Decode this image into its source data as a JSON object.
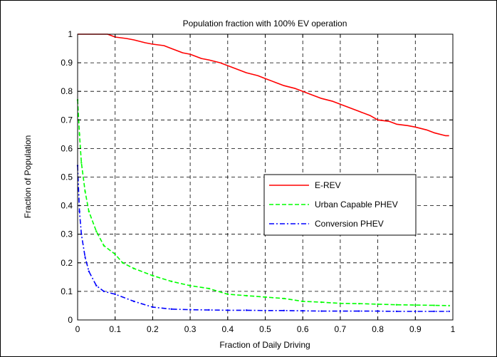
{
  "chart_data": {
    "type": "line",
    "title": "Population fraction with 100% EV operation",
    "xlabel": "Fraction of Daily Driving",
    "ylabel": "Fraction of Population",
    "xlim": [
      0,
      1
    ],
    "ylim": [
      0,
      1
    ],
    "xticks": [
      "0",
      "0.1",
      "0.2",
      "0.3",
      "0.4",
      "0.5",
      "0.6",
      "0.7",
      "0.8",
      "0.9",
      "1"
    ],
    "yticks": [
      "0",
      "0.1",
      "0.2",
      "0.3",
      "0.4",
      "0.5",
      "0.6",
      "0.7",
      "0.8",
      "0.9",
      "1"
    ],
    "grid": true,
    "legend_position": "center-right",
    "series": [
      {
        "name": "E-REV",
        "color": "#ff0000",
        "style": "solid",
        "x": [
          0,
          0.02,
          0.05,
          0.08,
          0.1,
          0.13,
          0.15,
          0.18,
          0.2,
          0.23,
          0.25,
          0.28,
          0.3,
          0.33,
          0.35,
          0.38,
          0.4,
          0.43,
          0.45,
          0.48,
          0.5,
          0.53,
          0.55,
          0.58,
          0.6,
          0.63,
          0.65,
          0.68,
          0.7,
          0.73,
          0.75,
          0.78,
          0.8,
          0.83,
          0.85,
          0.88,
          0.9,
          0.93,
          0.95,
          0.98,
          0.99
        ],
        "y": [
          1,
          1,
          1,
          1,
          0.99,
          0.985,
          0.98,
          0.97,
          0.965,
          0.96,
          0.95,
          0.935,
          0.93,
          0.915,
          0.91,
          0.9,
          0.89,
          0.875,
          0.865,
          0.855,
          0.845,
          0.83,
          0.82,
          0.81,
          0.8,
          0.785,
          0.775,
          0.765,
          0.755,
          0.74,
          0.73,
          0.715,
          0.7,
          0.695,
          0.685,
          0.68,
          0.675,
          0.665,
          0.655,
          0.645,
          0.645
        ]
      },
      {
        "name": "Urban Capable PHEV",
        "color": "#00ff00",
        "style": "dashed",
        "x": [
          0,
          0.005,
          0.01,
          0.02,
          0.03,
          0.05,
          0.07,
          0.1,
          0.12,
          0.15,
          0.2,
          0.25,
          0.3,
          0.35,
          0.4,
          0.45,
          0.5,
          0.55,
          0.6,
          0.65,
          0.7,
          0.75,
          0.8,
          0.85,
          0.9,
          0.95,
          0.99
        ],
        "y": [
          0.77,
          0.65,
          0.55,
          0.45,
          0.38,
          0.31,
          0.26,
          0.23,
          0.2,
          0.18,
          0.155,
          0.135,
          0.12,
          0.11,
          0.09,
          0.085,
          0.08,
          0.075,
          0.065,
          0.062,
          0.058,
          0.057,
          0.055,
          0.053,
          0.052,
          0.051,
          0.05
        ]
      },
      {
        "name": "Conversion PHEV",
        "color": "#0000ff",
        "style": "dashdot",
        "x": [
          0,
          0.005,
          0.01,
          0.02,
          0.03,
          0.05,
          0.07,
          0.1,
          0.15,
          0.2,
          0.25,
          0.3,
          0.35,
          0.4,
          0.45,
          0.5,
          0.55,
          0.6,
          0.65,
          0.7,
          0.75,
          0.8,
          0.85,
          0.9,
          0.95,
          0.99
        ],
        "y": [
          0.54,
          0.38,
          0.3,
          0.22,
          0.17,
          0.12,
          0.1,
          0.09,
          0.065,
          0.045,
          0.038,
          0.036,
          0.035,
          0.034,
          0.034,
          0.033,
          0.033,
          0.032,
          0.031,
          0.031,
          0.031,
          0.031,
          0.03,
          0.03,
          0.03,
          0.03
        ]
      }
    ]
  }
}
